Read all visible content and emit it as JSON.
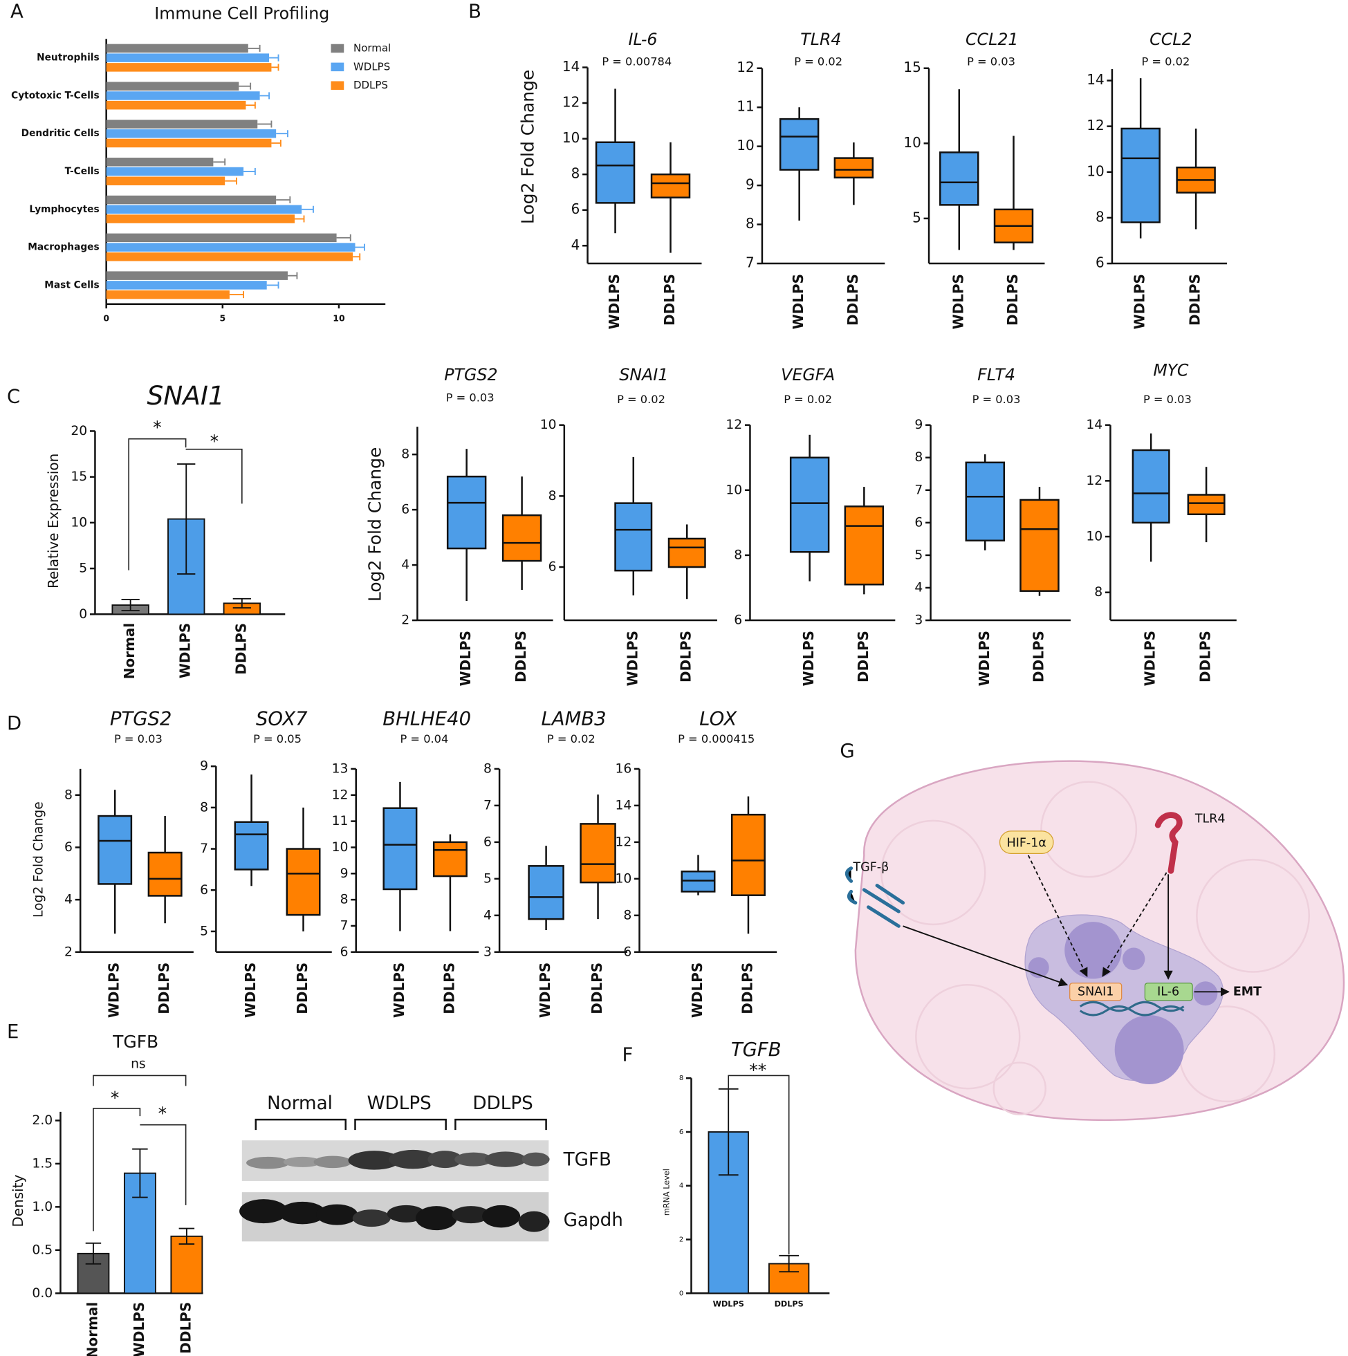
{
  "panel_labels": [
    "A",
    "B",
    "C",
    "D",
    "E",
    "F",
    "G"
  ],
  "chart_data": [
    {
      "type": "hbar",
      "title": "Immune Cell Profiling",
      "categories": [
        "Neutrophils",
        "Cytotoxic T-Cells",
        "Dendritic Cells",
        "T-Cells",
        "Lymphocytes",
        "Macrophages",
        "Mast Cells"
      ],
      "series": [
        {
          "name": "Normal",
          "color": "#808080",
          "values": [
            6.1,
            5.7,
            6.5,
            4.6,
            7.3,
            9.9,
            7.8
          ],
          "errors": [
            0.5,
            0.5,
            0.6,
            0.5,
            0.6,
            0.6,
            0.4
          ]
        },
        {
          "name": "WDLPS",
          "color": "#5aa6f2",
          "values": [
            7.0,
            6.6,
            7.3,
            5.9,
            8.4,
            10.7,
            6.9
          ],
          "errors": [
            0.4,
            0.4,
            0.5,
            0.5,
            0.5,
            0.4,
            0.5
          ]
        },
        {
          "name": "DDLPS",
          "color": "#ff8c1a",
          "values": [
            7.1,
            6.0,
            7.1,
            5.1,
            8.1,
            10.6,
            5.3
          ],
          "errors": [
            0.3,
            0.4,
            0.4,
            0.5,
            0.4,
            0.3,
            0.6
          ]
        }
      ],
      "xlim": [
        0,
        12
      ],
      "xticks": [
        0,
        5,
        10
      ],
      "legend": "upper right"
    },
    {
      "type": "box",
      "title": "IL-6",
      "subtitle": "P = 0.00784",
      "ylabel": "Log2 Fold Change",
      "categories": [
        "WDLPS",
        "DDLPS"
      ],
      "colors": [
        "#4d9de8",
        "#ff8000"
      ],
      "boxes": [
        {
          "min": 4.7,
          "q1": 6.4,
          "median": 8.5,
          "q3": 9.8,
          "max": 12.8
        },
        {
          "min": 3.6,
          "q1": 6.7,
          "median": 7.5,
          "q3": 8.0,
          "max": 9.8
        }
      ],
      "ylim": [
        3,
        14
      ],
      "yticks": [
        4,
        6,
        8,
        10,
        12,
        14
      ]
    },
    {
      "type": "box",
      "title": "TLR4",
      "subtitle": "P = 0.02",
      "categories": [
        "WDLPS",
        "DDLPS"
      ],
      "colors": [
        "#4d9de8",
        "#ff8000"
      ],
      "boxes": [
        {
          "min": 8.1,
          "q1": 9.4,
          "median": 10.25,
          "q3": 10.7,
          "max": 11.0
        },
        {
          "min": 8.5,
          "q1": 9.2,
          "median": 9.4,
          "q3": 9.7,
          "max": 10.1
        }
      ],
      "ylim": [
        7,
        12
      ],
      "yticks": [
        7,
        8,
        9,
        10,
        11,
        12
      ]
    },
    {
      "type": "box",
      "title": "CCL21",
      "subtitle": "P = 0.03",
      "categories": [
        "WDLPS",
        "DDLPS"
      ],
      "colors": [
        "#4d9de8",
        "#ff8000"
      ],
      "boxes": [
        {
          "min": 2.9,
          "q1": 5.9,
          "median": 7.4,
          "q3": 9.4,
          "max": 13.6
        },
        {
          "min": 2.9,
          "q1": 3.4,
          "median": 4.5,
          "q3": 5.6,
          "max": 10.5
        }
      ],
      "ylim": [
        2,
        15
      ],
      "yticks": [
        5,
        10,
        15
      ]
    },
    {
      "type": "box",
      "title": "CCL2",
      "subtitle": "P = 0.02",
      "categories": [
        "WDLPS",
        "DDLPS"
      ],
      "colors": [
        "#4d9de8",
        "#ff8000"
      ],
      "boxes": [
        {
          "min": 7.1,
          "q1": 7.8,
          "median": 10.6,
          "q3": 11.9,
          "max": 14.1
        },
        {
          "min": 7.5,
          "q1": 9.1,
          "median": 9.65,
          "q3": 10.2,
          "max": 11.9
        }
      ],
      "ylim": [
        6,
        14.5
      ],
      "yticks": [
        6,
        8,
        10,
        12,
        14
      ]
    },
    {
      "type": "vbar",
      "title": "SNAI1",
      "ylabel": "Relative Expression",
      "categories": [
        "Normal",
        "WDLPS",
        "DDLPS"
      ],
      "colors": [
        "#777777",
        "#4d9de8",
        "#ff8000"
      ],
      "values": [
        1.0,
        10.4,
        1.2
      ],
      "errors": [
        0.6,
        6.0,
        0.5
      ],
      "ylim": [
        0,
        20
      ],
      "yticks": [
        0,
        5,
        10,
        15,
        20
      ],
      "annotations": [
        "*",
        "*"
      ]
    },
    {
      "type": "box",
      "title": "PTGS2",
      "subtitle": "P = 0.03",
      "ylabel": "Log2 Fold Change",
      "categories": [
        "WDLPS",
        "DDLPS"
      ],
      "colors": [
        "#4d9de8",
        "#ff8000"
      ],
      "boxes": [
        {
          "min": 2.7,
          "q1": 4.6,
          "median": 6.25,
          "q3": 7.2,
          "max": 8.2
        },
        {
          "min": 3.1,
          "q1": 4.15,
          "median": 4.8,
          "q3": 5.8,
          "max": 7.2
        }
      ],
      "ylim": [
        2,
        9
      ],
      "yticks": [
        2,
        4,
        6,
        8
      ]
    },
    {
      "type": "box",
      "title": "SNAI1",
      "subtitle": "P = 0.02",
      "categories": [
        "WDLPS",
        "DDLPS"
      ],
      "colors": [
        "#4d9de8",
        "#ff8000"
      ],
      "boxes": [
        {
          "min": 5.2,
          "q1": 5.9,
          "median": 7.05,
          "q3": 7.8,
          "max": 9.1
        },
        {
          "min": 5.1,
          "q1": 6.0,
          "median": 6.55,
          "q3": 6.8,
          "max": 7.2
        }
      ],
      "ylim": [
        4.5,
        10
      ],
      "yticks": [
        6,
        8,
        10
      ]
    },
    {
      "type": "box",
      "title": "VEGFA",
      "subtitle": "P = 0.02",
      "categories": [
        "WDLPS",
        "DDLPS"
      ],
      "colors": [
        "#4d9de8",
        "#ff8000"
      ],
      "boxes": [
        {
          "min": 7.2,
          "q1": 8.1,
          "median": 9.6,
          "q3": 11.0,
          "max": 11.7
        },
        {
          "min": 6.8,
          "q1": 7.1,
          "median": 8.9,
          "q3": 9.5,
          "max": 10.1
        }
      ],
      "ylim": [
        6,
        12
      ],
      "yticks": [
        6,
        8,
        10,
        12
      ]
    },
    {
      "type": "box",
      "title": "FLT4",
      "subtitle": "P = 0.03",
      "categories": [
        "WDLPS",
        "DDLPS"
      ],
      "colors": [
        "#4d9de8",
        "#ff8000"
      ],
      "boxes": [
        {
          "min": 5.15,
          "q1": 5.45,
          "median": 6.8,
          "q3": 7.85,
          "max": 8.1
        },
        {
          "min": 3.75,
          "q1": 3.9,
          "median": 5.8,
          "q3": 6.7,
          "max": 7.1
        }
      ],
      "ylim": [
        3,
        9
      ],
      "yticks": [
        3,
        4,
        5,
        6,
        7,
        8,
        9
      ]
    },
    {
      "type": "box",
      "title": "MYC",
      "subtitle": "P = 0.03",
      "categories": [
        "WDLPS",
        "DDLPS"
      ],
      "colors": [
        "#4d9de8",
        "#ff8000"
      ],
      "boxes": [
        {
          "min": 9.1,
          "q1": 10.5,
          "median": 11.55,
          "q3": 13.1,
          "max": 13.7
        },
        {
          "min": 9.8,
          "q1": 10.8,
          "median": 11.2,
          "q3": 11.5,
          "max": 12.5
        }
      ],
      "ylim": [
        7,
        14
      ],
      "yticks": [
        8,
        10,
        12,
        14
      ]
    },
    {
      "type": "box",
      "title": "PTGS2",
      "subtitle": "P = 0.03",
      "ylabel": "Log2 Fold Change",
      "categories": [
        "WDLPS",
        "DDLPS"
      ],
      "colors": [
        "#4d9de8",
        "#ff8000"
      ],
      "boxes": [
        {
          "min": 2.7,
          "q1": 4.6,
          "median": 6.25,
          "q3": 7.2,
          "max": 8.2
        },
        {
          "min": 3.1,
          "q1": 4.15,
          "median": 4.8,
          "q3": 5.8,
          "max": 7.2
        }
      ],
      "ylim": [
        2,
        9
      ],
      "yticks": [
        2,
        4,
        6,
        8
      ]
    },
    {
      "type": "box",
      "title": "SOX7",
      "subtitle": "P = 0.05",
      "categories": [
        "WDLPS",
        "DDLPS"
      ],
      "colors": [
        "#4d9de8",
        "#ff8000"
      ],
      "boxes": [
        {
          "min": 6.1,
          "q1": 6.5,
          "median": 7.35,
          "q3": 7.65,
          "max": 8.8
        },
        {
          "min": 5.0,
          "q1": 5.4,
          "median": 6.4,
          "q3": 7.0,
          "max": 8.0
        }
      ],
      "ylim": [
        4.5,
        9
      ],
      "yticks": [
        5,
        6,
        7,
        8,
        9
      ]
    },
    {
      "type": "box",
      "title": "BHLHE40",
      "subtitle": "P = 0.04",
      "categories": [
        "WDLPS",
        "DDLPS"
      ],
      "colors": [
        "#4d9de8",
        "#ff8000"
      ],
      "boxes": [
        {
          "min": 6.8,
          "q1": 8.4,
          "median": 10.1,
          "q3": 11.5,
          "max": 12.5
        },
        {
          "min": 6.8,
          "q1": 8.9,
          "median": 9.9,
          "q3": 10.2,
          "max": 10.5
        }
      ],
      "ylim": [
        6,
        13
      ],
      "yticks": [
        6,
        7,
        8,
        9,
        10,
        11,
        12,
        13
      ]
    },
    {
      "type": "box",
      "title": "LAMB3",
      "subtitle": "P = 0.02",
      "categories": [
        "WDLPS",
        "DDLPS"
      ],
      "colors": [
        "#4d9de8",
        "#ff8000"
      ],
      "boxes": [
        {
          "min": 3.6,
          "q1": 3.9,
          "median": 4.5,
          "q3": 5.35,
          "max": 5.9
        },
        {
          "min": 3.9,
          "q1": 4.9,
          "median": 5.4,
          "q3": 6.5,
          "max": 7.3
        }
      ],
      "ylim": [
        3,
        8
      ],
      "yticks": [
        3,
        4,
        5,
        6,
        7,
        8
      ]
    },
    {
      "type": "box",
      "title": "LOX",
      "subtitle": "P = 0.000415",
      "categories": [
        "WDLPS",
        "DDLPS"
      ],
      "colors": [
        "#4d9de8",
        "#ff8000"
      ],
      "boxes": [
        {
          "min": 9.1,
          "q1": 9.3,
          "median": 9.9,
          "q3": 10.4,
          "max": 11.3
        },
        {
          "min": 7.0,
          "q1": 9.1,
          "median": 11.0,
          "q3": 13.5,
          "max": 14.5
        }
      ],
      "ylim": [
        6,
        16
      ],
      "yticks": [
        6,
        8,
        10,
        12,
        14,
        16
      ]
    },
    {
      "type": "vbar",
      "title": "TGFB",
      "ylabel": "Density",
      "categories": [
        "Normal",
        "WDLPS",
        "DDLPS"
      ],
      "colors": [
        "#555555",
        "#4d9de8",
        "#ff8000"
      ],
      "values": [
        0.46,
        1.39,
        0.66
      ],
      "errors": [
        0.12,
        0.28,
        0.09
      ],
      "ylim": [
        0,
        2.1
      ],
      "yticks": [
        {
          "value": 0,
          "label": "0.0"
        },
        0.5,
        {
          "value": 1,
          "label": "1.0"
        },
        1.5,
        {
          "value": 2,
          "label": "2.0"
        }
      ],
      "annotations": [
        "ns",
        "*",
        "*"
      ]
    },
    {
      "type": "vbar",
      "title": "TGFB",
      "ylabel": "mRNA Level",
      "categories": [
        "WDLPS",
        "DDLPS"
      ],
      "colors": [
        "#4d9de8",
        "#ff8000"
      ],
      "values": [
        6.0,
        1.1
      ],
      "errors": [
        1.6,
        0.3
      ],
      "ylim": [
        0,
        8
      ],
      "yticks": [
        0,
        2,
        4,
        6,
        8
      ],
      "annotations": [
        "**"
      ]
    }
  ],
  "blot": {
    "groups": [
      "Normal",
      "WDLPS",
      "DDLPS"
    ],
    "bands": [
      "TGFB",
      "Gapdh"
    ]
  },
  "diagram": {
    "nodes": [
      {
        "label": "TGF-β"
      },
      {
        "label": "HIF-1α"
      },
      {
        "label": "TLR4"
      },
      {
        "label": "SNAI1"
      },
      {
        "label": "IL-6"
      },
      {
        "label": "EMT"
      }
    ]
  }
}
